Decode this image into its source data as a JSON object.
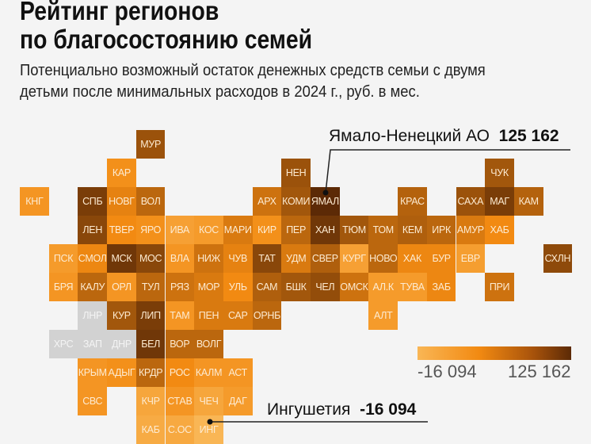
{
  "header": {
    "title_line1": "Рейтинг регионов",
    "title_line2": "по благосостоянию семей",
    "subtitle_line1": "Потенциально возможный остаток денежных средств семьи с двумя",
    "subtitle_line2": "детьми после минимальных расходов в 2024 г., руб. в мес."
  },
  "chart_data": {
    "type": "heatmap",
    "title": "Рейтинг регионов по благосостоянию семей",
    "description_unit": "руб. в мес.",
    "scale": {
      "min": -16094,
      "max": 125162,
      "min_label": "-16 094",
      "max_label": "125 162",
      "colors": [
        "#f9b655",
        "#f28a12",
        "#5c2a06"
      ],
      "no_data_color": "#d2d2d2"
    },
    "callouts": [
      {
        "name": "Ямало-Ненецкий АО",
        "value_label": "125 162",
        "region": "ЯМАЛ"
      },
      {
        "name": "Ингушетия",
        "value_label": "-16 094",
        "region": "ИНГ"
      }
    ],
    "regions": [
      {
        "code": "МУР",
        "col": 4,
        "row": 0,
        "level": 0.75
      },
      {
        "code": "КАР",
        "col": 3,
        "row": 1,
        "level": 0.35
      },
      {
        "code": "НЕН",
        "col": 9,
        "row": 1,
        "level": 0.75
      },
      {
        "code": "ЧУК",
        "col": 16,
        "row": 1,
        "level": 0.72
      },
      {
        "code": "КНГ",
        "col": 0,
        "row": 2,
        "level": 0.3
      },
      {
        "code": "СПБ",
        "col": 2,
        "row": 2,
        "level": 0.88
      },
      {
        "code": "НОВГ",
        "col": 3,
        "row": 2,
        "level": 0.45
      },
      {
        "code": "ВОЛ",
        "col": 4,
        "row": 2,
        "level": 0.62
      },
      {
        "code": "АРХ",
        "col": 8,
        "row": 2,
        "level": 0.55
      },
      {
        "code": "КОМИ",
        "col": 9,
        "row": 2,
        "level": 0.72
      },
      {
        "code": "ЯМАЛ",
        "col": 10,
        "row": 2,
        "level": 1.0
      },
      {
        "code": "КРАС",
        "col": 13,
        "row": 2,
        "level": 0.65
      },
      {
        "code": "САХА",
        "col": 15,
        "row": 2,
        "level": 0.75
      },
      {
        "code": "МАГ",
        "col": 16,
        "row": 2,
        "level": 0.88
      },
      {
        "code": "КАМ",
        "col": 17,
        "row": 2,
        "level": 0.65
      },
      {
        "code": "ЛЕН",
        "col": 2,
        "row": 3,
        "level": 0.82
      },
      {
        "code": "ТВЕР",
        "col": 3,
        "row": 3,
        "level": 0.4
      },
      {
        "code": "ЯРО",
        "col": 4,
        "row": 3,
        "level": 0.35
      },
      {
        "code": "ИВА",
        "col": 5,
        "row": 3,
        "level": 0.2
      },
      {
        "code": "КОС",
        "col": 6,
        "row": 3,
        "level": 0.25
      },
      {
        "code": "МАРИ",
        "col": 7,
        "row": 3,
        "level": 0.5
      },
      {
        "code": "КИР",
        "col": 8,
        "row": 3,
        "level": 0.35
      },
      {
        "code": "ПЕР",
        "col": 9,
        "row": 3,
        "level": 0.62
      },
      {
        "code": "ХАН",
        "col": 10,
        "row": 3,
        "level": 0.92
      },
      {
        "code": "ТЮМ",
        "col": 11,
        "row": 3,
        "level": 0.72
      },
      {
        "code": "ТОМ",
        "col": 12,
        "row": 3,
        "level": 0.62
      },
      {
        "code": "КЕМ",
        "col": 13,
        "row": 3,
        "level": 0.67
      },
      {
        "code": "ИРК",
        "col": 14,
        "row": 3,
        "level": 0.62
      },
      {
        "code": "АМУР",
        "col": 15,
        "row": 3,
        "level": 0.5
      },
      {
        "code": "ХАБ",
        "col": 16,
        "row": 3,
        "level": 0.4
      },
      {
        "code": "ПСК",
        "col": 1,
        "row": 4,
        "level": 0.25
      },
      {
        "code": "СМОЛ",
        "col": 2,
        "row": 4,
        "level": 0.42
      },
      {
        "code": "МСК",
        "col": 3,
        "row": 4,
        "level": 0.92
      },
      {
        "code": "МОС",
        "col": 4,
        "row": 4,
        "level": 0.82
      },
      {
        "code": "ВЛА",
        "col": 5,
        "row": 4,
        "level": 0.3
      },
      {
        "code": "НИЖ",
        "col": 6,
        "row": 4,
        "level": 0.55
      },
      {
        "code": "ЧУВ",
        "col": 7,
        "row": 4,
        "level": 0.45
      },
      {
        "code": "ТАТ",
        "col": 8,
        "row": 4,
        "level": 0.82
      },
      {
        "code": "УДМ",
        "col": 9,
        "row": 4,
        "level": 0.5
      },
      {
        "code": "СВЕР",
        "col": 10,
        "row": 4,
        "level": 0.67
      },
      {
        "code": "КУРГ",
        "col": 11,
        "row": 4,
        "level": 0.2
      },
      {
        "code": "НОВО",
        "col": 12,
        "row": 4,
        "level": 0.62
      },
      {
        "code": "ХАК",
        "col": 13,
        "row": 4,
        "level": 0.42
      },
      {
        "code": "БУР",
        "col": 14,
        "row": 4,
        "level": 0.42
      },
      {
        "code": "ЕВР",
        "col": 15,
        "row": 4,
        "level": 0.22
      },
      {
        "code": "СХЛН",
        "col": 18,
        "row": 4,
        "level": 0.8
      },
      {
        "code": "БРЯ",
        "col": 1,
        "row": 5,
        "level": 0.3
      },
      {
        "code": "КАЛУ",
        "col": 2,
        "row": 5,
        "level": 0.62
      },
      {
        "code": "ОРЛ",
        "col": 3,
        "row": 5,
        "level": 0.3
      },
      {
        "code": "ТУЛ",
        "col": 4,
        "row": 5,
        "level": 0.62
      },
      {
        "code": "РЯЗ",
        "col": 5,
        "row": 5,
        "level": 0.55
      },
      {
        "code": "МОР",
        "col": 6,
        "row": 5,
        "level": 0.5
      },
      {
        "code": "УЛЬ",
        "col": 7,
        "row": 5,
        "level": 0.4
      },
      {
        "code": "САМ",
        "col": 8,
        "row": 5,
        "level": 0.67
      },
      {
        "code": "БШК",
        "col": 9,
        "row": 5,
        "level": 0.72
      },
      {
        "code": "ЧЕЛ",
        "col": 10,
        "row": 5,
        "level": 0.78
      },
      {
        "code": "ОМСК",
        "col": 11,
        "row": 5,
        "level": 0.55
      },
      {
        "code": "АЛ.К",
        "col": 12,
        "row": 5,
        "level": 0.25
      },
      {
        "code": "ТУВА",
        "col": 13,
        "row": 5,
        "level": 0.25
      },
      {
        "code": "ЗАБ",
        "col": 14,
        "row": 5,
        "level": 0.42
      },
      {
        "code": "ПРИ",
        "col": 16,
        "row": 5,
        "level": 0.55
      },
      {
        "code": "ЛНР",
        "col": 2,
        "row": 6,
        "level": null
      },
      {
        "code": "КУР",
        "col": 3,
        "row": 6,
        "level": 0.72
      },
      {
        "code": "ЛИП",
        "col": 4,
        "row": 6,
        "level": 0.88
      },
      {
        "code": "ТАМ",
        "col": 5,
        "row": 6,
        "level": 0.3
      },
      {
        "code": "ПЕН",
        "col": 6,
        "row": 6,
        "level": 0.5
      },
      {
        "code": "САР",
        "col": 7,
        "row": 6,
        "level": 0.5
      },
      {
        "code": "ОРНБ",
        "col": 8,
        "row": 6,
        "level": 0.62
      },
      {
        "code": "АЛТ",
        "col": 12,
        "row": 6,
        "level": 0.25
      },
      {
        "code": "ХРС",
        "col": 1,
        "row": 7,
        "level": null
      },
      {
        "code": "ЗАП",
        "col": 2,
        "row": 7,
        "level": null
      },
      {
        "code": "ДНР",
        "col": 3,
        "row": 7,
        "level": null
      },
      {
        "code": "БЕЛ",
        "col": 4,
        "row": 7,
        "level": 0.92
      },
      {
        "code": "ВОР",
        "col": 5,
        "row": 7,
        "level": 0.62
      },
      {
        "code": "ВОЛГ",
        "col": 6,
        "row": 7,
        "level": 0.62
      },
      {
        "code": "КРЫМ",
        "col": 2,
        "row": 8,
        "level": 0.3
      },
      {
        "code": "АДЫГ",
        "col": 3,
        "row": 8,
        "level": 0.35
      },
      {
        "code": "КРДР",
        "col": 4,
        "row": 8,
        "level": 0.62
      },
      {
        "code": "РОС",
        "col": 5,
        "row": 8,
        "level": 0.4
      },
      {
        "code": "КАЛМ",
        "col": 6,
        "row": 8,
        "level": 0.3
      },
      {
        "code": "АСТ",
        "col": 7,
        "row": 8,
        "level": 0.3
      },
      {
        "code": "СВС",
        "col": 2,
        "row": 9,
        "level": 0.3
      },
      {
        "code": "КЧР",
        "col": 4,
        "row": 9,
        "level": 0.15
      },
      {
        "code": "СТАВ",
        "col": 5,
        "row": 9,
        "level": 0.3
      },
      {
        "code": "ЧЕЧ",
        "col": 6,
        "row": 9,
        "level": 0.15
      },
      {
        "code": "ДАГ",
        "col": 7,
        "row": 9,
        "level": 0.25
      },
      {
        "code": "КАБ",
        "col": 4,
        "row": 10,
        "level": 0.1
      },
      {
        "code": "С.ОС",
        "col": 5,
        "row": 10,
        "level": 0.12
      },
      {
        "code": "ИНГ",
        "col": 6,
        "row": 10,
        "level": 0.0
      }
    ]
  }
}
